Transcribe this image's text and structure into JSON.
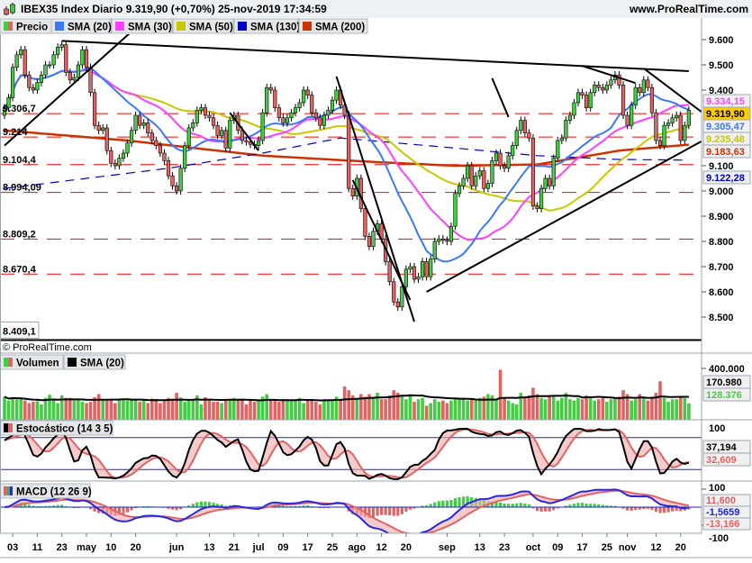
{
  "header": {
    "title": "IBEX35 Index Diario 9.319,90 (+0,70%) 25-nov-2019 17:34:59",
    "site": "www.ProRealTime.com"
  },
  "legend": {
    "price_label": "Precio",
    "items": [
      {
        "label": "SMA (20)",
        "color": "#3a78ff"
      },
      {
        "label": "SMA (30)",
        "color": "#ff40ff"
      },
      {
        "label": "SMA (50)",
        "color": "#c8c800"
      },
      {
        "label": "SMA (130)",
        "color": "#0000c8"
      },
      {
        "label": "SMA (200)",
        "color": "#cc3300"
      }
    ]
  },
  "watermark": "© ProRealTime.com",
  "colors": {
    "up": "#44cc44",
    "down": "#e06464",
    "level": "#ff0000"
  },
  "price_axis": {
    "ticks": [
      {
        "value": 9600,
        "label": "9.600"
      },
      {
        "value": 9500,
        "label": "9.500"
      },
      {
        "value": 9400,
        "label": "9.400"
      },
      {
        "value": 9100,
        "label": "9.100"
      },
      {
        "value": 9000,
        "label": "9.000"
      },
      {
        "value": 8900,
        "label": "8.900"
      },
      {
        "value": 8800,
        "label": "8.800"
      },
      {
        "value": 8700,
        "label": "8.700"
      },
      {
        "value": 8600,
        "label": "8.600"
      },
      {
        "value": 8500,
        "label": "8.500"
      }
    ],
    "value_boxes": [
      {
        "label": "9.334,15",
        "color": "#ff40ff",
        "bg": "#f0f0f0"
      },
      {
        "label": "9.319,90",
        "color": "#000000",
        "bg": "#ffcc00"
      },
      {
        "label": "9.305,47",
        "color": "#3a78ff",
        "bg": "#f0f0f0"
      },
      {
        "label": "9.235,48",
        "color": "#c8c800",
        "bg": "#f0f0f0"
      },
      {
        "label": "9.183,63",
        "color": "#cc3300",
        "bg": "#f0f0f0"
      },
      {
        "label": "9.122,28",
        "color": "#0000c8",
        "bg": "#f0f0f0"
      }
    ]
  },
  "levels": [
    {
      "value": 9635,
      "label": ""
    },
    {
      "value": 9306.7,
      "label": "9.306,7"
    },
    {
      "value": 9214,
      "label": "9.214"
    },
    {
      "value": 9104.4,
      "label": "9.104,4"
    },
    {
      "value": 8994.09,
      "label": "8.994,09"
    },
    {
      "value": 8809.2,
      "label": "8.809,2"
    },
    {
      "value": 8670.4,
      "label": "8.670,4"
    }
  ],
  "low_level": {
    "value": 8409.1,
    "label": "8.409,1"
  },
  "x_axis": {
    "ticks": [
      {
        "bar": 2,
        "label": "03"
      },
      {
        "bar": 8,
        "label": "11"
      },
      {
        "bar": 14,
        "label": "23"
      },
      {
        "bar": 20,
        "label": "may"
      },
      {
        "bar": 26,
        "label": "10"
      },
      {
        "bar": 32,
        "label": "20"
      },
      {
        "bar": 42,
        "label": "jun"
      },
      {
        "bar": 50,
        "label": "13"
      },
      {
        "bar": 56,
        "label": "21"
      },
      {
        "bar": 62,
        "label": "jul"
      },
      {
        "bar": 68,
        "label": "09"
      },
      {
        "bar": 74,
        "label": "17"
      },
      {
        "bar": 80,
        "label": "25"
      },
      {
        "bar": 86,
        "label": "ago"
      },
      {
        "bar": 92,
        "label": "12"
      },
      {
        "bar": 98,
        "label": "20"
      },
      {
        "bar": 108,
        "label": "sep"
      },
      {
        "bar": 116,
        "label": "13"
      },
      {
        "bar": 122,
        "label": "23"
      },
      {
        "bar": 129,
        "label": "oct"
      },
      {
        "bar": 135,
        "label": "09"
      },
      {
        "bar": 141,
        "label": "17"
      },
      {
        "bar": 147,
        "label": "25"
      },
      {
        "bar": 152,
        "label": "nov"
      },
      {
        "bar": 159,
        "label": "12"
      },
      {
        "bar": 165,
        "label": "20"
      }
    ]
  },
  "chart_data": [
    {
      "type": "candlestick",
      "first_open": 9300,
      "closes": [
        9330,
        9370,
        9490,
        9540,
        9560,
        9460,
        9410,
        9400,
        9430,
        9460,
        9500,
        9500,
        9540,
        9570,
        9580,
        9470,
        9440,
        9450,
        9500,
        9560,
        9490,
        9390,
        9260,
        9240,
        9250,
        9160,
        9110,
        9100,
        9130,
        9150,
        9190,
        9240,
        9300,
        9260,
        9270,
        9230,
        9200,
        9180,
        9150,
        9120,
        9060,
        9020,
        9000,
        9090,
        9180,
        9250,
        9270,
        9320,
        9330,
        9300,
        9290,
        9260,
        9220,
        9240,
        9170,
        9280,
        9300,
        9240,
        9200,
        9195,
        9185,
        9180,
        9200,
        9310,
        9410,
        9400,
        9330,
        9290,
        9270,
        9290,
        9310,
        9330,
        9350,
        9400,
        9380,
        9310,
        9290,
        9260,
        9300,
        9320,
        9360,
        9400,
        9340,
        9300,
        9010,
        8980,
        9050,
        8930,
        8820,
        8780,
        8840,
        8870,
        8810,
        8720,
        8640,
        8560,
        8540,
        8620,
        8690,
        8700,
        8650,
        8660,
        8720,
        8660,
        8730,
        8800,
        8810,
        8805,
        8800,
        8860,
        8990,
        9020,
        9050,
        9100,
        9020,
        9060,
        9080,
        9010,
        9030,
        9120,
        9150,
        9100,
        9090,
        9140,
        9180,
        9240,
        9280,
        9230,
        9210,
        8940,
        8930,
        9010,
        9050,
        9020,
        9130,
        9200,
        9210,
        9280,
        9300,
        9350,
        9390,
        9380,
        9330,
        9390,
        9420,
        9410,
        9400,
        9420,
        9440,
        9460,
        9420,
        9300,
        9260,
        9340,
        9410,
        9390,
        9440,
        9410,
        9310,
        9200,
        9180,
        9260,
        9270,
        9290,
        9300,
        9200,
        9260,
        9319.9
      ],
      "sma130": [
        [
          0,
          9010
        ],
        [
          40,
          9090
        ],
        [
          63,
          9150
        ],
        [
          82,
          9210
        ],
        [
          110,
          9170
        ],
        [
          130,
          9140
        ],
        [
          150,
          9125
        ],
        [
          167,
          9122.28
        ]
      ],
      "sma200": [
        [
          0,
          9240
        ],
        [
          30,
          9200
        ],
        [
          63,
          9140
        ],
        [
          90,
          9115
        ],
        [
          110,
          9100
        ],
        [
          130,
          9105
        ],
        [
          150,
          9160
        ],
        [
          167,
          9183.63
        ]
      ],
      "trendlines": [
        [
          [
            0,
            9180
          ],
          [
            31,
            9632
          ]
        ],
        [
          [
            14,
            9595
          ],
          [
            167,
            9475
          ]
        ],
        [
          [
            55,
            9310
          ],
          [
            62,
            9160
          ]
        ],
        [
          [
            81,
            9454
          ],
          [
            100,
            8482
          ]
        ],
        [
          [
            85,
            9043
          ],
          [
            99,
            8568
          ]
        ],
        [
          [
            103,
            8600
          ],
          [
            170,
            9196
          ]
        ],
        [
          [
            119,
            9447
          ],
          [
            123,
            9293
          ]
        ],
        [
          [
            141,
            9496
          ],
          [
            154,
            9428
          ]
        ],
        [
          [
            156,
            9486
          ],
          [
            182,
            9168
          ]
        ]
      ],
      "ylim": [
        8409.1,
        9640
      ]
    },
    {
      "type": "bar",
      "title": "Volumen",
      "sma_label": "SMA (20)",
      "volumes": [
        180000,
        150000,
        175000,
        170000,
        160000,
        150000,
        130000,
        140000,
        145000,
        120000,
        170000,
        195000,
        165000,
        130000,
        190000,
        170000,
        170000,
        150000,
        160000,
        140000,
        130000,
        140000,
        175000,
        200000,
        150000,
        160000,
        150000,
        130000,
        165000,
        160000,
        150000,
        160000,
        160000,
        140000,
        150000,
        130000,
        165000,
        160000,
        130000,
        145000,
        170000,
        160000,
        210000,
        175000,
        140000,
        150000,
        160000,
        190000,
        120000,
        175000,
        150000,
        140000,
        140000,
        130000,
        160000,
        150000,
        170000,
        160000,
        150000,
        120000,
        150000,
        140000,
        160000,
        180000,
        200000,
        150000,
        160000,
        140000,
        150000,
        145000,
        150000,
        160000,
        170000,
        130000,
        150000,
        150000,
        140000,
        120000,
        160000,
        150000,
        150000,
        180000,
        160000,
        260000,
        230000,
        190000,
        170000,
        200000,
        180000,
        200000,
        170000,
        210000,
        160000,
        160000,
        190000,
        230000,
        210000,
        190000,
        160000,
        200000,
        140000,
        160000,
        170000,
        110000,
        130000,
        160000,
        140000,
        150000,
        130000,
        150000,
        170000,
        170000,
        160000,
        150000,
        160000,
        150000,
        170000,
        180000,
        200000,
        190000,
        160000,
        390000,
        170000,
        150000,
        130000,
        120000,
        210000,
        180000,
        190000,
        250000,
        200000,
        170000,
        160000,
        180000,
        190000,
        150000,
        170000,
        210000,
        160000,
        150000,
        170000,
        160000,
        190000,
        180000,
        150000,
        160000,
        170000,
        140000,
        160000,
        170000,
        180000,
        230000,
        200000,
        150000,
        160000,
        200000,
        170000,
        150000,
        180000,
        210000,
        300000,
        170000,
        140000,
        160000,
        160000,
        180000,
        170000,
        128376
      ],
      "axis_label": "400.000",
      "value_labels": [
        {
          "label": "170.980",
          "color": "#000000"
        },
        {
          "label": "128.376",
          "color": "#44cc44"
        }
      ]
    },
    {
      "type": "line",
      "title": "Estocástico (14 3 5)",
      "axis_label": "100",
      "levels": [
        80,
        20
      ],
      "value_labels": [
        {
          "label": "37,194",
          "color": "#000000"
        },
        {
          "label": "32,609",
          "color": "#e06464"
        }
      ]
    },
    {
      "type": "bar",
      "title": "MACD (12 26 9)",
      "axis_labels": [
        "100",
        "-100"
      ],
      "value_labels": [
        {
          "label": "11,600",
          "color": "#e06464"
        },
        {
          "label": "-1,5659",
          "color": "#2020e0"
        },
        {
          "label": "-13,166",
          "color": "#e06464"
        }
      ]
    }
  ]
}
